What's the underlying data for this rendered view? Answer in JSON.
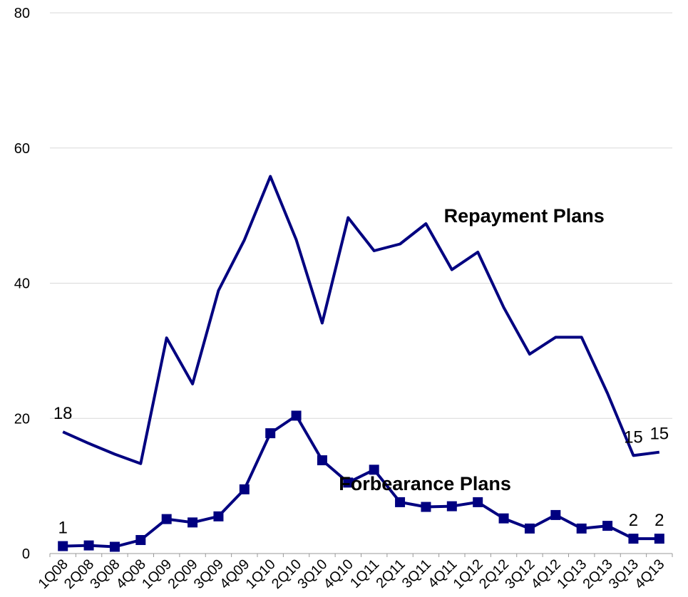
{
  "chart_data": {
    "type": "line",
    "title": "",
    "xlabel": "",
    "ylabel": "",
    "ylim": [
      0,
      80
    ],
    "yticks": [
      0,
      20,
      40,
      60,
      80
    ],
    "grid": true,
    "legend": "none",
    "categories": [
      "1Q08",
      "2Q08",
      "3Q08",
      "4Q08",
      "1Q09",
      "2Q09",
      "3Q09",
      "4Q09",
      "1Q10",
      "2Q10",
      "3Q10",
      "4Q10",
      "1Q11",
      "2Q11",
      "3Q11",
      "4Q11",
      "1Q12",
      "2Q12",
      "3Q12",
      "4Q12",
      "1Q13",
      "2Q13",
      "3Q13",
      "4Q13"
    ],
    "series": [
      {
        "name": "Repayment  Plans",
        "color": "#000080",
        "marker": "none",
        "values": [
          18,
          16.3,
          14.7,
          13.3,
          31.9,
          25.1,
          38.9,
          46.4,
          55.8,
          46.4,
          34.1,
          49.7,
          44.8,
          45.8,
          48.8,
          42,
          44.6,
          36.4,
          29.5,
          32,
          32,
          23.7,
          14.5,
          15
        ]
      },
      {
        "name": "Forbearance Plans",
        "color": "#000080",
        "marker": "square",
        "values": [
          1.1,
          1.2,
          1,
          2,
          5.1,
          4.6,
          5.5,
          9.5,
          17.8,
          20.4,
          13.8,
          10.5,
          12.4,
          7.6,
          6.9,
          7,
          7.6,
          5.2,
          3.7,
          5.7,
          3.7,
          4.1,
          2.2,
          2.2
        ]
      }
    ],
    "annotations": [
      {
        "text": "18",
        "series": 0,
        "index": 0,
        "pos": "above"
      },
      {
        "text": "15",
        "series": 0,
        "index": 22,
        "pos": "above"
      },
      {
        "text": "15",
        "series": 0,
        "index": 23,
        "pos": "above"
      },
      {
        "text": "1",
        "series": 1,
        "index": 0,
        "pos": "above"
      },
      {
        "text": "2",
        "series": 1,
        "index": 22,
        "pos": "above"
      },
      {
        "text": "2",
        "series": 1,
        "index": 23,
        "pos": "above"
      }
    ],
    "series_labels": [
      {
        "text": "Repayment  Plans",
        "series": 0,
        "index": 16
      },
      {
        "text": "Forbearance Plans",
        "series": 1,
        "index": 13
      }
    ]
  }
}
